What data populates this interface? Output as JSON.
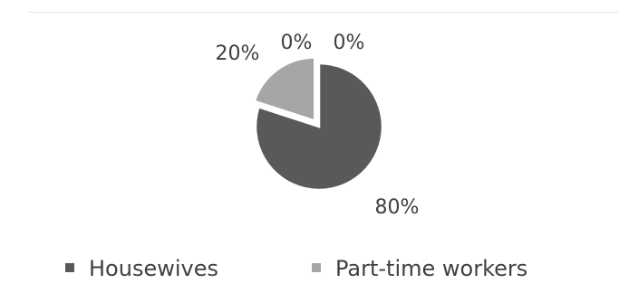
{
  "chart_data": {
    "type": "pie",
    "title": "",
    "categories": [
      "Housewives",
      "Part-time workers",
      "",
      ""
    ],
    "values": [
      80,
      20,
      0,
      0
    ],
    "data_labels": [
      "80%",
      "20%",
      "0%",
      "0%"
    ],
    "colors": [
      "#595959",
      "#a6a6a6",
      "#7f7f7f",
      "#bfbfbf"
    ],
    "legend": {
      "position": "bottom",
      "entries": [
        "Housewives",
        "Part-time workers"
      ]
    },
    "exploded_slice_index": 1
  }
}
